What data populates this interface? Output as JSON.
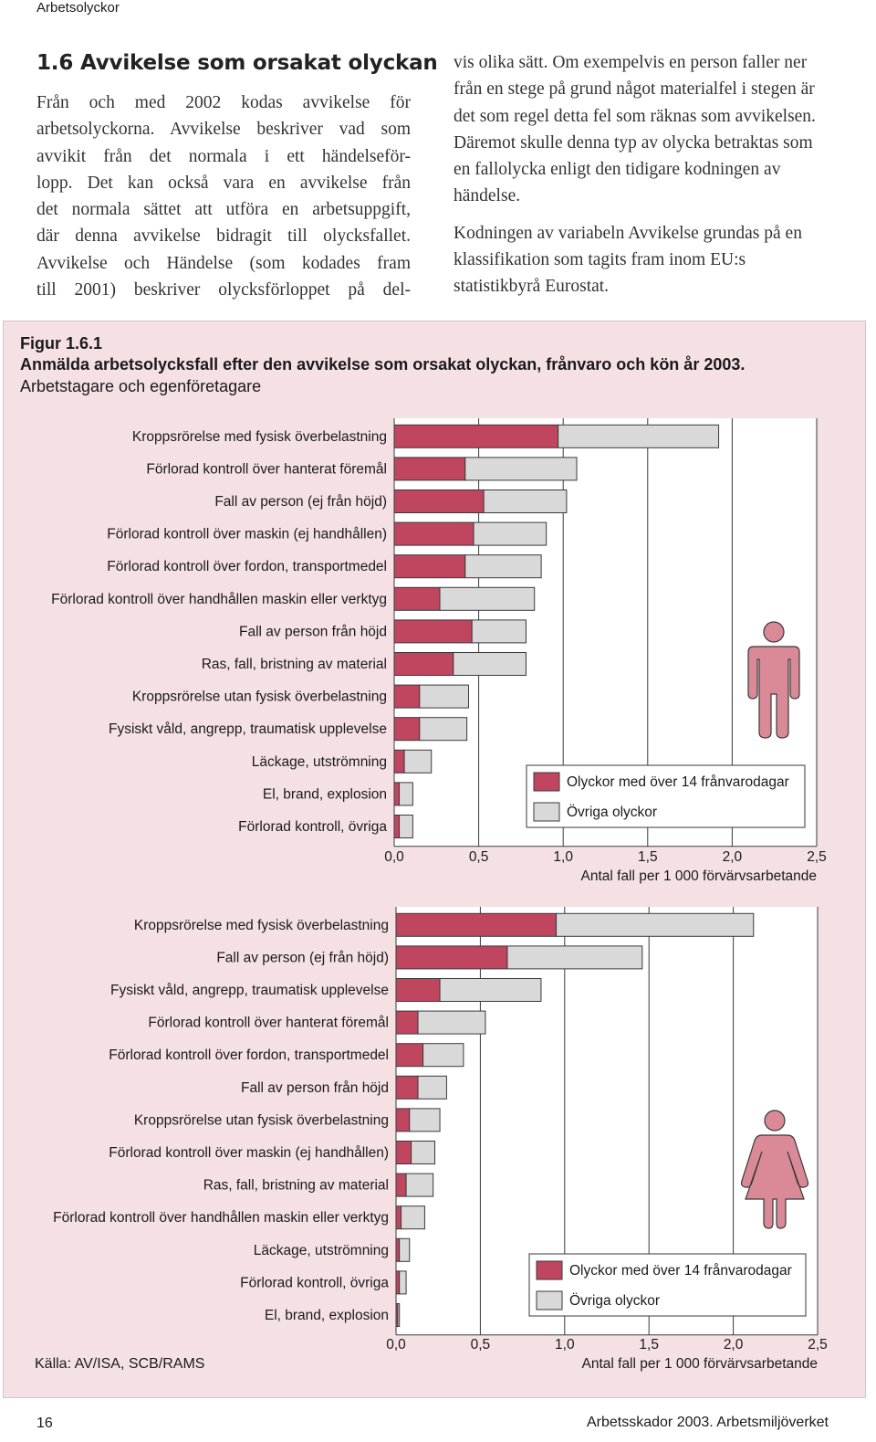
{
  "header": {
    "section": "Arbetsolyckor"
  },
  "article": {
    "title": "1.6 Avvikelse som orsakat olyckan",
    "col1_lines": [
      "Från och med 2002 kodas avvikelse för",
      "arbetsolyckorna. Avvikelse beskriver vad som",
      "avvikit från det normala i ett händelseför-",
      "lopp. Det kan också vara en avvikelse från",
      "det normala sättet att utföra en arbetsuppgift,",
      "där denna avvikelse bidragit till olycksfallet.",
      "Avvikelse och Händelse (som kodades fram",
      "till 2001) beskriver olycksförloppet på del-"
    ],
    "col2_p1": "vis olika sätt. Om exempelvis en person faller ner från en stege på grund något materialfel i stegen är det som regel detta fel som räknas som avvikelsen. Däremot skulle denna typ av olycka betraktas som en fallolycka enligt den tidigare kodningen av händelse.",
    "col2_p2": "Kodningen av variabeln Avvikelse grundas på en klassifikation som tagits fram inom EU:s statistikbyrå Eurostat."
  },
  "figure": {
    "label": "Figur 1.6.1",
    "title": "Anmälda arbetsolycksfall efter den avvikelse som orsakat olyckan, frånvaro och kön år 2003.",
    "subtitle": "Arbetstagare och egenföretagare",
    "source": "Källa: AV/ISA, SCB/RAMS"
  },
  "colors": {
    "severe": "#c0455f",
    "other": "#d9d9d9",
    "panel": "#f5e1e3",
    "figure_icon": "#d98a96"
  },
  "chart_data": [
    {
      "type": "bar",
      "orientation": "horizontal",
      "stacked": true,
      "group_icon": "male-figure-icon",
      "categories": [
        "Kroppsrörelse med fysisk överbelastning",
        "Förlorad kontroll över hanterat föremål",
        "Fall av person (ej från höjd)",
        "Förlorad kontroll över maskin (ej handhållen)",
        "Förlorad kontroll över fordon, transportmedel",
        "Förlorad kontroll över handhållen maskin eller verktyg",
        "Fall av person från höjd",
        "Ras, fall, bristning av material",
        "Kroppsrörelse utan fysisk överbelastning",
        "Fysiskt våld, angrepp, traumatisk upplevelse",
        "Läckage, utströmning",
        "El, brand, explosion",
        "Förlorad kontroll, övriga"
      ],
      "series": [
        {
          "name": "Olyckor med över 14 frånvarodagar",
          "values": [
            0.97,
            0.42,
            0.53,
            0.47,
            0.42,
            0.27,
            0.46,
            0.35,
            0.15,
            0.15,
            0.06,
            0.03,
            0.03
          ]
        },
        {
          "name": "Övriga olyckor",
          "values": [
            0.95,
            0.66,
            0.49,
            0.43,
            0.45,
            0.56,
            0.32,
            0.43,
            0.29,
            0.28,
            0.16,
            0.08,
            0.08
          ]
        }
      ],
      "tick_labels": [
        "0,0",
        "0,5",
        "1,0",
        "1,5",
        "2,0",
        "2,5"
      ],
      "xlim": [
        0,
        2.5
      ],
      "xlabel": "Antal fall per 1 000 förvärvsarbetande",
      "legend": "bottom-right",
      "grid": true
    },
    {
      "type": "bar",
      "orientation": "horizontal",
      "stacked": true,
      "group_icon": "female-figure-icon",
      "categories": [
        "Kroppsrörelse med fysisk överbelastning",
        "Fall av person (ej från höjd)",
        "Fysiskt våld, angrepp, traumatisk upplevelse",
        "Förlorad kontroll över hanterat föremål",
        "Förlorad kontroll över fordon, transportmedel",
        "Fall av person från höjd",
        "Kroppsrörelse utan fysisk överbelastning",
        "Förlorad kontroll över maskin (ej handhållen)",
        "Ras, fall, bristning av material",
        "Förlorad kontroll över handhållen maskin eller verktyg",
        "Läckage, utströmning",
        "Förlorad kontroll, övriga",
        "El, brand, explosion"
      ],
      "series": [
        {
          "name": "Olyckor med över 14 frånvarodagar",
          "values": [
            0.95,
            0.66,
            0.26,
            0.13,
            0.16,
            0.13,
            0.08,
            0.09,
            0.06,
            0.03,
            0.02,
            0.02,
            0.01
          ]
        },
        {
          "name": "Övriga olyckor",
          "values": [
            1.17,
            0.8,
            0.6,
            0.4,
            0.24,
            0.17,
            0.18,
            0.14,
            0.16,
            0.14,
            0.06,
            0.04,
            0.01
          ]
        }
      ],
      "tick_labels": [
        "0,0",
        "0,5",
        "1,0",
        "1,5",
        "2,0",
        "2,5"
      ],
      "xlim": [
        0,
        2.5
      ],
      "xlabel": "Antal fall per 1 000 förvärvsarbetande",
      "legend": "bottom-right",
      "grid": true
    }
  ],
  "footer": {
    "page_number": "16",
    "publication": "Arbetsskador 2003. Arbetsmiljöverket"
  }
}
